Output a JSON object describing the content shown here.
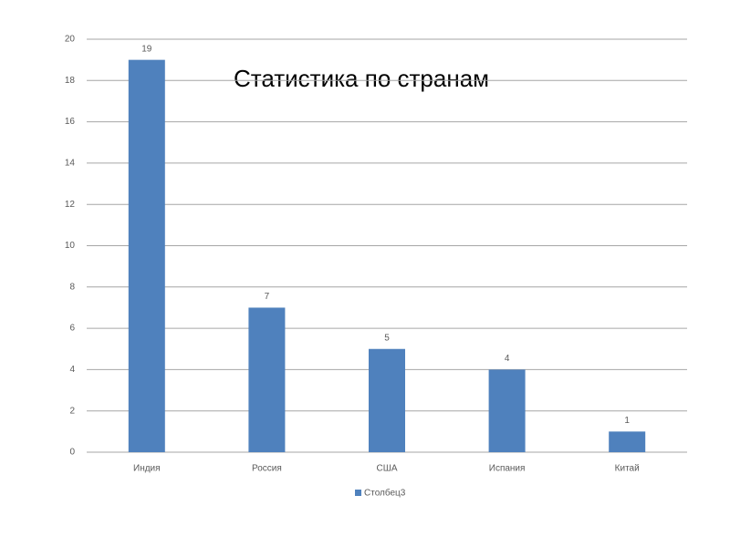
{
  "chart_data": {
    "type": "bar",
    "title": "Статистика по странам",
    "categories": [
      "Индия",
      "Россия",
      "США",
      "Испания",
      "Китай"
    ],
    "series": [
      {
        "name": "Столбец3",
        "color": "#4f81bd",
        "values": [
          19,
          7,
          5,
          4,
          1
        ]
      }
    ],
    "ylim": [
      0,
      20
    ],
    "yticks": [
      0,
      2,
      4,
      6,
      8,
      10,
      12,
      14,
      16,
      18,
      20
    ],
    "grid": true
  }
}
